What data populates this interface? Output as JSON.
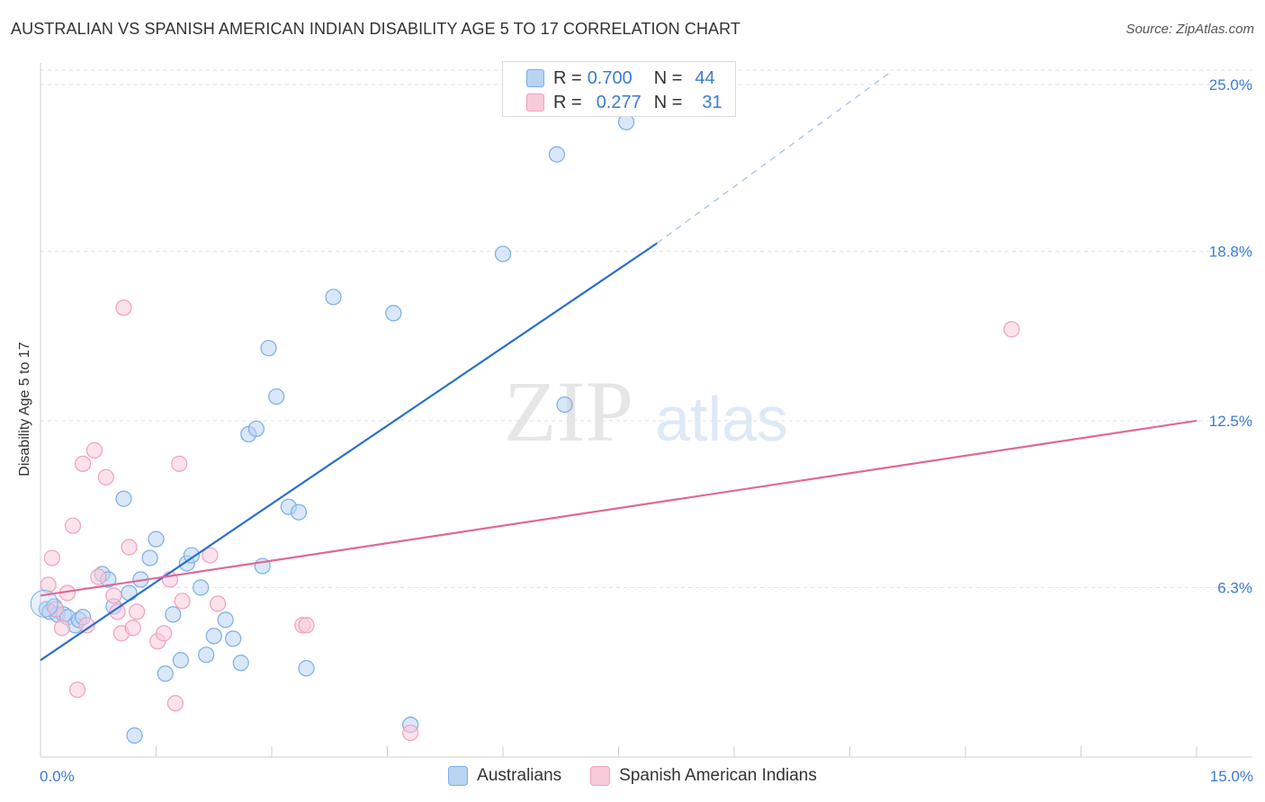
{
  "header": {
    "title": "AUSTRALIAN VS SPANISH AMERICAN INDIAN DISABILITY AGE 5 TO 17 CORRELATION CHART",
    "source": "Source: ZipAtlas.com"
  },
  "watermark": {
    "zip": "ZIP",
    "atlas": "atlas"
  },
  "stats_legend": [
    {
      "r_label": "R =",
      "r_value": "0.700",
      "n_label": "N =",
      "n_value": "44",
      "color": "#7aaee8",
      "fill": "#b9d3f3"
    },
    {
      "r_label": "R =",
      "r_value": "0.277",
      "n_label": "N =",
      "n_value": "31",
      "color": "#f0a0bb",
      "fill": "#f9cad9"
    }
  ],
  "chart_data": {
    "type": "scatter",
    "ylabel": "Disability Age 5 to 17",
    "xlim": [
      0,
      15
    ],
    "ylim": [
      0,
      25.8
    ],
    "x_tick_labels": [
      "0.0%",
      "15.0%"
    ],
    "y_ticks": [
      {
        "value": 6.3,
        "label": "6.3%"
      },
      {
        "value": 12.5,
        "label": "12.5%"
      },
      {
        "value": 18.8,
        "label": "18.8%"
      },
      {
        "value": 25.0,
        "label": "25.0%"
      }
    ],
    "grid": true,
    "legend_position": "bottom",
    "series": [
      {
        "name": "Australians",
        "color": "#7aaee8",
        "fill": "#b9d3f3",
        "line_color": "#2a6fcc",
        "trend": {
          "x0": 0.0,
          "y0": 3.6,
          "x1": 8.0,
          "y1": 19.1,
          "dash_to_x": 11.0,
          "dash_to_y": 25.4
        },
        "points": [
          [
            0.08,
            5.5
          ],
          [
            0.12,
            5.4
          ],
          [
            0.18,
            5.6
          ],
          [
            0.22,
            5.3
          ],
          [
            0.3,
            5.3
          ],
          [
            0.35,
            5.2
          ],
          [
            0.45,
            4.9
          ],
          [
            0.5,
            5.1
          ],
          [
            0.55,
            5.2
          ],
          [
            0.8,
            6.8
          ],
          [
            0.88,
            6.6
          ],
          [
            0.95,
            5.6
          ],
          [
            1.08,
            9.6
          ],
          [
            1.15,
            6.1
          ],
          [
            1.3,
            6.6
          ],
          [
            1.42,
            7.4
          ],
          [
            1.5,
            8.1
          ],
          [
            1.62,
            3.1
          ],
          [
            1.72,
            5.3
          ],
          [
            1.82,
            3.6
          ],
          [
            1.9,
            7.2
          ],
          [
            1.96,
            7.5
          ],
          [
            2.08,
            6.3
          ],
          [
            2.15,
            3.8
          ],
          [
            2.25,
            4.5
          ],
          [
            2.4,
            5.1
          ],
          [
            2.5,
            4.4
          ],
          [
            2.6,
            3.5
          ],
          [
            2.7,
            12.0
          ],
          [
            2.8,
            12.2
          ],
          [
            2.88,
            7.1
          ],
          [
            2.96,
            15.2
          ],
          [
            3.06,
            13.4
          ],
          [
            3.22,
            9.3
          ],
          [
            3.35,
            9.1
          ],
          [
            3.45,
            3.3
          ],
          [
            3.8,
            17.1
          ],
          [
            4.58,
            16.5
          ],
          [
            4.8,
            1.2
          ],
          [
            6.0,
            18.7
          ],
          [
            6.7,
            22.4
          ],
          [
            6.8,
            13.1
          ],
          [
            7.6,
            23.6
          ],
          [
            1.22,
            0.8
          ]
        ]
      },
      {
        "name": "Spanish American Indians",
        "color": "#f0a0bb",
        "fill": "#f9cad9",
        "line_color": "#e06898",
        "trend": {
          "x0": 0.0,
          "y0": 6.0,
          "x1": 15.0,
          "y1": 12.5
        },
        "points": [
          [
            0.1,
            6.4
          ],
          [
            0.15,
            7.4
          ],
          [
            0.2,
            5.5
          ],
          [
            0.28,
            4.8
          ],
          [
            0.35,
            6.1
          ],
          [
            0.42,
            8.6
          ],
          [
            0.48,
            2.5
          ],
          [
            0.55,
            10.9
          ],
          [
            0.6,
            4.9
          ],
          [
            0.7,
            11.4
          ],
          [
            0.75,
            6.7
          ],
          [
            0.85,
            10.4
          ],
          [
            0.95,
            6.0
          ],
          [
            1.0,
            5.4
          ],
          [
            1.05,
            4.6
          ],
          [
            1.08,
            16.7
          ],
          [
            1.15,
            7.8
          ],
          [
            1.2,
            4.8
          ],
          [
            1.25,
            5.4
          ],
          [
            1.52,
            4.3
          ],
          [
            1.6,
            4.6
          ],
          [
            1.68,
            6.6
          ],
          [
            1.75,
            2.0
          ],
          [
            1.8,
            10.9
          ],
          [
            1.84,
            5.8
          ],
          [
            2.2,
            7.5
          ],
          [
            2.3,
            5.7
          ],
          [
            3.4,
            4.9
          ],
          [
            3.45,
            4.9
          ],
          [
            4.8,
            0.9
          ],
          [
            12.6,
            15.9
          ]
        ]
      }
    ]
  }
}
